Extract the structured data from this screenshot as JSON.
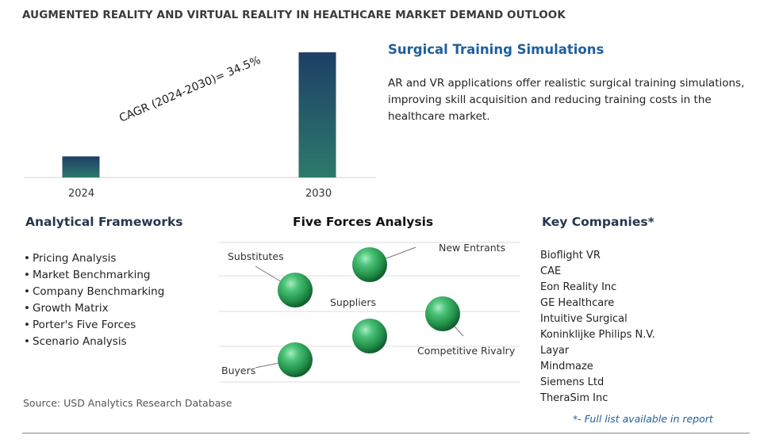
{
  "title": "AUGMENTED REALITY AND VIRTUAL REALITY IN HEALTHCARE MARKET DEMAND OUTLOOK",
  "chart_data": {
    "type": "bar",
    "categories": [
      "2024",
      "2030"
    ],
    "values": [
      1.0,
      5.93
    ],
    "value_note": "relative bar heights; no absolute values printed",
    "annotation": "CAGR (2024-2030)=  34.5%",
    "title": "",
    "xlabel": "",
    "ylabel": "",
    "grid": false,
    "bar_gradient": [
      "#1d4a6b",
      "#2d7a6a"
    ]
  },
  "highlight": {
    "title": "Surgical Training Simulations",
    "text": "AR and VR applications offer realistic surgical training simulations, improving skill acquisition and reducing training costs in the healthcare market."
  },
  "frameworks": {
    "title": "Analytical Frameworks",
    "items": [
      "Pricing Analysis",
      "Market Benchmarking",
      "Company Benchmarking",
      "Growth Matrix",
      "Porter's Five Forces",
      "Scenario Analysis"
    ]
  },
  "five_forces": {
    "title": "Five Forces Analysis",
    "labels": {
      "new_entrants": "New Entrants",
      "substitutes": "Substitutes",
      "suppliers": "Suppliers",
      "competitive_rivalry": "Competitive Rivalry",
      "buyers": "Buyers"
    },
    "colors": {
      "sphere_light": "#8fe0a8",
      "sphere_mid": "#2fa257",
      "sphere_dark": "#0d5a2c"
    }
  },
  "companies": {
    "title": "Key Companies*",
    "items": [
      "Bioflight VR",
      "CAE",
      "Eon Reality Inc",
      "GE Healthcare",
      "Intuitive Surgical",
      "Koninklijke Philips N.V.",
      "Layar",
      "Mindmaze",
      "Siemens Ltd",
      "TheraSim Inc"
    ],
    "note": "*- Full list available in report"
  },
  "source": "Source: USD Analytics Research Database"
}
